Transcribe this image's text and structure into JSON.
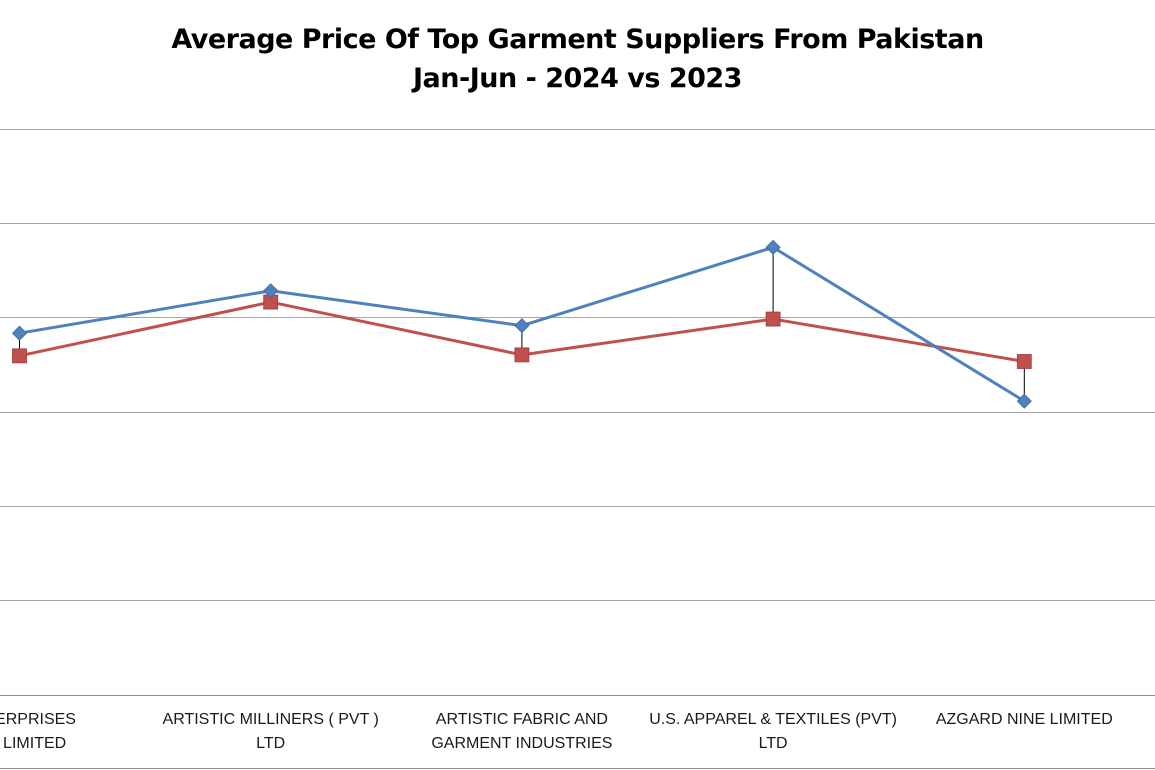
{
  "chart_data": {
    "type": "line",
    "title": [
      "Average Price Of Top Garment Suppliers From Pakistan",
      "Jan-Jun - 2024 vs 2023"
    ],
    "categories": [
      [
        "ENTERPRISES",
        "TE) LIMITED"
      ],
      [
        "ARTISTIC MILLINERS ( PVT )",
        "LTD"
      ],
      [
        "ARTISTIC FABRIC AND",
        "GARMENT INDUSTRIES"
      ],
      [
        "U.S. APPAREL & TEXTILES (PVT)",
        "LTD"
      ],
      [
        "AZGARD NINE LIMITED"
      ]
    ],
    "series": [
      {
        "color": "#4F81BD",
        "marker": "diamond",
        "values": [
          3.83,
          4.28,
          3.91,
          4.74,
          3.11
        ]
      },
      {
        "color": "#C0504D",
        "marker": "square",
        "values": [
          3.59,
          4.16,
          3.6,
          3.98,
          3.53
        ]
      }
    ],
    "ylim": [
      0,
      6
    ],
    "grid": true,
    "high_low_lines": true
  }
}
